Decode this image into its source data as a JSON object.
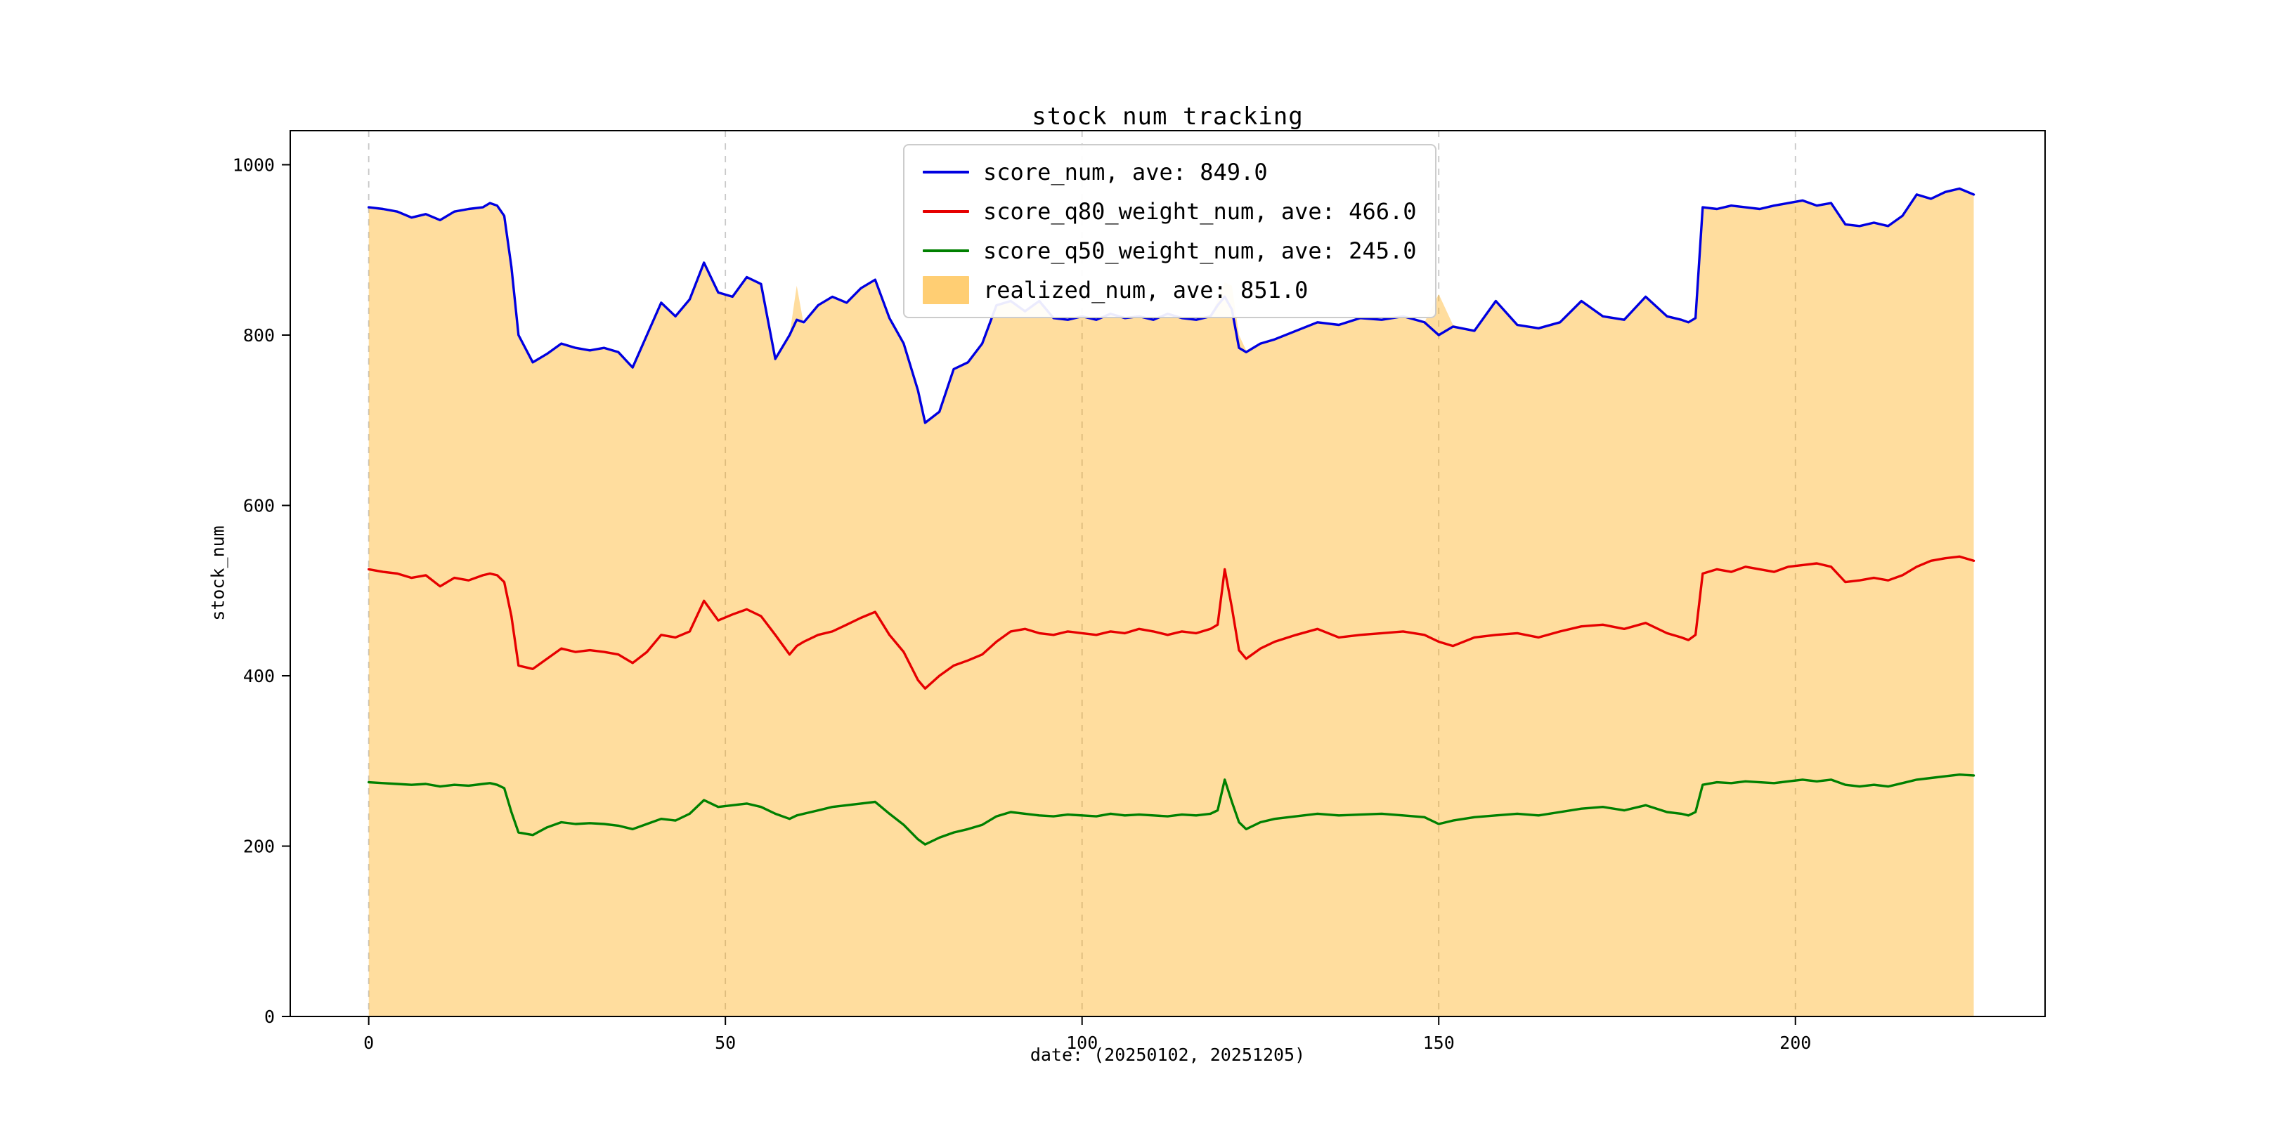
{
  "page": {
    "background": "#ffffff"
  },
  "chart_data": {
    "type": "line",
    "title": "stock num tracking",
    "xlabel": "date: (20250102, 20251205)",
    "ylabel": "stock_num",
    "xlim": [
      -11,
      235
    ],
    "ylim": [
      0,
      1040
    ],
    "x_ticks": [
      0,
      50,
      100,
      150,
      200
    ],
    "y_ticks": [
      0,
      200,
      400,
      600,
      800,
      1000
    ],
    "grid": "vertical-dashed-only",
    "grid_color": "#c8c8c8",
    "legend_position": "upper center",
    "x": [
      0,
      2,
      4,
      6,
      8,
      10,
      12,
      14,
      16,
      17,
      18,
      19,
      20,
      21,
      23,
      25,
      27,
      29,
      31,
      33,
      35,
      37,
      39,
      41,
      43,
      45,
      47,
      49,
      51,
      53,
      55,
      57,
      59,
      60,
      61,
      63,
      65,
      67,
      69,
      71,
      73,
      75,
      77,
      78,
      80,
      82,
      84,
      86,
      88,
      90,
      92,
      94,
      96,
      98,
      100,
      102,
      104,
      106,
      108,
      110,
      112,
      114,
      116,
      118,
      119,
      120,
      121,
      122,
      123,
      125,
      127,
      130,
      133,
      136,
      139,
      142,
      145,
      148,
      150,
      152,
      155,
      158,
      161,
      164,
      167,
      170,
      173,
      176,
      179,
      182,
      184,
      185,
      186,
      187,
      189,
      191,
      193,
      195,
      197,
      199,
      201,
      203,
      205,
      207,
      209,
      211,
      213,
      215,
      217,
      219,
      221,
      223,
      225
    ],
    "series": [
      {
        "name": "score_num",
        "legend": "score_num, ave: 849.0",
        "color": "#0000e0",
        "type": "line",
        "values": [
          950,
          948,
          945,
          938,
          942,
          935,
          945,
          948,
          950,
          955,
          952,
          940,
          880,
          800,
          768,
          778,
          790,
          785,
          782,
          785,
          780,
          762,
          800,
          838,
          822,
          842,
          885,
          850,
          845,
          868,
          860,
          772,
          800,
          818,
          815,
          835,
          845,
          838,
          855,
          865,
          820,
          790,
          735,
          697,
          710,
          760,
          768,
          790,
          835,
          840,
          828,
          840,
          820,
          818,
          822,
          818,
          825,
          820,
          822,
          818,
          825,
          820,
          818,
          822,
          835,
          845,
          830,
          785,
          780,
          790,
          795,
          805,
          815,
          812,
          820,
          818,
          822,
          815,
          800,
          810,
          805,
          840,
          812,
          808,
          815,
          840,
          822,
          818,
          845,
          822,
          818,
          815,
          820,
          950,
          948,
          952,
          950,
          948,
          952,
          955,
          958,
          952,
          955,
          930,
          928,
          932,
          928,
          940,
          965,
          960,
          968,
          972,
          965
        ]
      },
      {
        "name": "score_q80_weight_num",
        "legend": "score_q80_weight_num, ave: 466.0",
        "color": "#e60000",
        "type": "line",
        "values": [
          525,
          522,
          520,
          515,
          518,
          505,
          515,
          512,
          518,
          520,
          518,
          510,
          470,
          412,
          408,
          420,
          432,
          428,
          430,
          428,
          425,
          415,
          428,
          448,
          445,
          452,
          488,
          465,
          472,
          478,
          470,
          448,
          425,
          435,
          440,
          448,
          452,
          460,
          468,
          475,
          448,
          428,
          395,
          385,
          400,
          412,
          418,
          425,
          440,
          452,
          455,
          450,
          448,
          452,
          450,
          448,
          452,
          450,
          455,
          452,
          448,
          452,
          450,
          455,
          460,
          525,
          480,
          430,
          420,
          432,
          440,
          448,
          455,
          445,
          448,
          450,
          452,
          448,
          440,
          435,
          445,
          448,
          450,
          445,
          452,
          458,
          460,
          455,
          462,
          450,
          445,
          442,
          448,
          520,
          525,
          522,
          528,
          525,
          522,
          528,
          530,
          532,
          528,
          510,
          512,
          515,
          512,
          518,
          528,
          535,
          538,
          540,
          535
        ]
      },
      {
        "name": "score_q50_weight_num",
        "legend": "score_q50_weight_num, ave: 245.0",
        "color": "#008000",
        "type": "line",
        "values": [
          275,
          274,
          273,
          272,
          273,
          270,
          272,
          271,
          273,
          274,
          272,
          268,
          240,
          216,
          213,
          222,
          228,
          226,
          227,
          226,
          224,
          220,
          226,
          232,
          230,
          238,
          254,
          246,
          248,
          250,
          246,
          238,
          232,
          236,
          238,
          242,
          246,
          248,
          250,
          252,
          238,
          225,
          208,
          202,
          210,
          216,
          220,
          225,
          235,
          240,
          238,
          236,
          235,
          237,
          236,
          235,
          238,
          236,
          237,
          236,
          235,
          237,
          236,
          238,
          242,
          278,
          252,
          228,
          220,
          228,
          232,
          235,
          238,
          236,
          237,
          238,
          236,
          234,
          226,
          230,
          234,
          236,
          238,
          236,
          240,
          244,
          246,
          242,
          248,
          240,
          238,
          236,
          240,
          272,
          275,
          274,
          276,
          275,
          274,
          276,
          278,
          276,
          278,
          272,
          270,
          272,
          270,
          274,
          278,
          280,
          282,
          284,
          283
        ]
      },
      {
        "name": "realized_num",
        "legend": "realized_num, ave: 851.0",
        "color": "#ffa500",
        "type": "area",
        "fill_opacity": 0.38,
        "values": [
          950,
          948,
          945,
          938,
          942,
          935,
          945,
          948,
          950,
          955,
          952,
          940,
          880,
          800,
          768,
          778,
          790,
          785,
          782,
          785,
          780,
          762,
          800,
          838,
          822,
          842,
          885,
          850,
          845,
          868,
          860,
          772,
          800,
          858,
          812,
          835,
          845,
          838,
          855,
          865,
          820,
          790,
          735,
          697,
          710,
          760,
          768,
          790,
          835,
          840,
          828,
          840,
          820,
          818,
          822,
          818,
          825,
          820,
          822,
          818,
          825,
          820,
          818,
          822,
          842,
          862,
          858,
          800,
          782,
          790,
          795,
          805,
          815,
          812,
          820,
          818,
          822,
          815,
          848,
          812,
          805,
          840,
          812,
          808,
          815,
          840,
          822,
          818,
          845,
          822,
          818,
          815,
          820,
          950,
          948,
          952,
          950,
          948,
          952,
          955,
          958,
          952,
          955,
          930,
          928,
          932,
          928,
          940,
          965,
          960,
          968,
          972,
          965
        ]
      }
    ]
  }
}
